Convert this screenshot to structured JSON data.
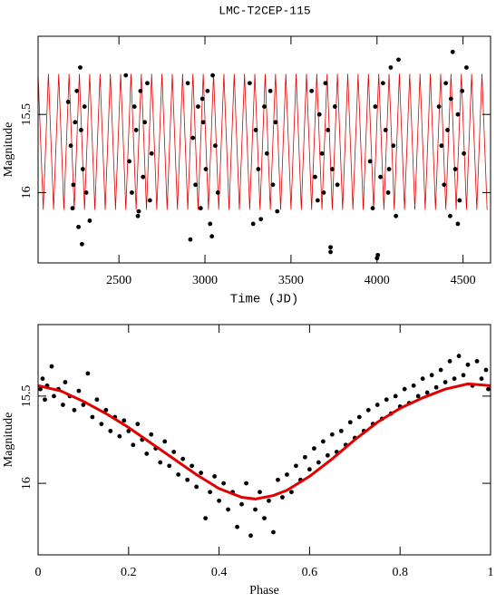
{
  "chart_data": [
    {
      "type": "scatter",
      "title": "LMC-T2CEP-115",
      "x_label": "Time (JD)",
      "y_label": "Magnitude",
      "xlim": [
        2030,
        4660
      ],
      "ylim": [
        15.0,
        16.45
      ],
      "y_inverted": true,
      "xticks": [
        2500,
        3000,
        3500,
        4000,
        4500
      ],
      "yticks": [
        15.5,
        16
      ],
      "series": [
        {
          "type": "line",
          "color": "#e00000",
          "x": [
            2030,
            2060,
            2090,
            2120,
            2150,
            2180,
            2210,
            2240,
            2270,
            2300,
            2330,
            2360,
            2390,
            2420,
            2450,
            2480,
            2510,
            2540,
            2570,
            2600,
            2630,
            2660,
            2690,
            2720,
            2750,
            2780,
            2810,
            2840,
            2870,
            2900,
            2930,
            2960,
            2990,
            3020,
            3050,
            3080,
            3110,
            3140,
            3170,
            3200,
            3230,
            3260,
            3290,
            3320,
            3350,
            3380,
            3410,
            3440,
            3470,
            3500,
            3530,
            3560,
            3590,
            3620,
            3650,
            3680,
            3710,
            3740,
            3770,
            3800,
            3830,
            3860,
            3890,
            3920,
            3950,
            3980,
            4010,
            4040,
            4070,
            4100,
            4130,
            4160,
            4190,
            4220,
            4250,
            4280,
            4310,
            4340,
            4370,
            4400,
            4430,
            4460,
            4490,
            4520,
            4550,
            4580,
            4610,
            4640
          ],
          "values": [
            15.24,
            16.11,
            15.24,
            16.11,
            15.24,
            16.11,
            15.24,
            16.11,
            15.24,
            16.11,
            15.24,
            16.11,
            15.24,
            16.11,
            15.24,
            16.11,
            15.24,
            16.11,
            15.24,
            16.11,
            15.24,
            16.11,
            15.24,
            16.11,
            15.24,
            16.11,
            15.24,
            16.11,
            15.24,
            16.11,
            15.24,
            16.11,
            15.24,
            16.11,
            15.24,
            16.11,
            15.24,
            16.11,
            15.24,
            16.11,
            15.24,
            16.11,
            15.24,
            16.11,
            15.24,
            16.11,
            15.24,
            16.11,
            15.24,
            16.11,
            15.24,
            16.11,
            15.24,
            16.11,
            15.24,
            16.11,
            15.24,
            16.11,
            15.24,
            16.11,
            15.24,
            16.11,
            15.24,
            16.11,
            15.24,
            16.11,
            15.24,
            16.11,
            15.24,
            16.11,
            15.24,
            16.11,
            15.24,
            16.11,
            15.24,
            16.11,
            15.24,
            16.11,
            15.24,
            16.11,
            15.24,
            16.11,
            15.24,
            16.11,
            15.24,
            16.11,
            15.24,
            16.11
          ]
        },
        {
          "type": "scatter",
          "color": "#000000",
          "x": [
            2205,
            2220,
            2235,
            2245,
            2255,
            2265,
            2275,
            2280,
            2290,
            2300,
            2310,
            2330,
            2230,
            2285,
            2540,
            2560,
            2575,
            2590,
            2600,
            2615,
            2625,
            2640,
            2650,
            2665,
            2680,
            2690,
            2610,
            2900,
            2915,
            2930,
            2945,
            2960,
            2975,
            2990,
            3005,
            3015,
            3030,
            3045,
            3060,
            3075,
            3040,
            2985,
            3260,
            3280,
            3295,
            3310,
            3325,
            3345,
            3360,
            3380,
            3395,
            3410,
            3420,
            3620,
            3640,
            3655,
            3665,
            3680,
            3700,
            3715,
            3730,
            3740,
            3755,
            3770,
            3730,
            3690,
            3960,
            3975,
            3990,
            4000,
            4005,
            4020,
            4035,
            4050,
            4065,
            4080,
            4095,
            4110,
            4125,
            4070,
            4360,
            4375,
            4390,
            4400,
            4410,
            4425,
            4440,
            4455,
            4470,
            4480,
            4495,
            4505,
            4520,
            4470,
            4430
          ],
          "values": [
            15.42,
            15.7,
            15.95,
            15.55,
            15.35,
            16.22,
            15.2,
            15.6,
            15.85,
            15.45,
            16.0,
            16.18,
            16.1,
            16.33,
            15.25,
            15.8,
            16.0,
            15.45,
            15.6,
            16.12,
            15.35,
            15.9,
            15.55,
            15.3,
            16.05,
            15.75,
            16.15,
            15.3,
            16.3,
            15.65,
            15.95,
            15.45,
            16.1,
            15.55,
            15.85,
            15.35,
            16.2,
            15.25,
            15.7,
            16.0,
            16.28,
            15.4,
            15.3,
            16.2,
            15.6,
            15.85,
            16.17,
            15.45,
            15.75,
            15.35,
            15.95,
            15.55,
            16.12,
            15.35,
            15.9,
            16.05,
            15.5,
            15.75,
            15.3,
            15.6,
            16.35,
            15.85,
            15.45,
            15.95,
            16.38,
            16.0,
            15.8,
            16.1,
            15.45,
            16.42,
            16.4,
            15.9,
            15.3,
            15.6,
            16.0,
            15.2,
            15.7,
            16.15,
            15.15,
            15.85,
            15.45,
            15.7,
            15.95,
            15.3,
            15.6,
            16.15,
            15.1,
            15.85,
            15.5,
            16.05,
            15.35,
            15.75,
            15.2,
            16.2,
            15.4
          ]
        }
      ]
    },
    {
      "type": "scatter",
      "x_label": "Phase",
      "y_label": "Magnitude",
      "xlim": [
        0,
        1
      ],
      "ylim": [
        15.09,
        16.41
      ],
      "y_inverted": true,
      "xticks": [
        0,
        0.2,
        0.4,
        0.6,
        0.8,
        1
      ],
      "yticks": [
        15.5,
        16
      ],
      "series": [
        {
          "type": "scatter",
          "color": "#000000",
          "x": [
            0.005,
            0.01,
            0.015,
            0.02,
            0.03,
            0.035,
            0.045,
            0.055,
            0.06,
            0.07,
            0.08,
            0.09,
            0.1,
            0.11,
            0.12,
            0.13,
            0.14,
            0.15,
            0.16,
            0.17,
            0.18,
            0.19,
            0.2,
            0.21,
            0.22,
            0.23,
            0.24,
            0.25,
            0.26,
            0.27,
            0.28,
            0.29,
            0.3,
            0.31,
            0.32,
            0.33,
            0.34,
            0.35,
            0.36,
            0.37,
            0.38,
            0.39,
            0.4,
            0.41,
            0.42,
            0.43,
            0.44,
            0.45,
            0.46,
            0.47,
            0.48,
            0.49,
            0.5,
            0.51,
            0.52,
            0.53,
            0.54,
            0.55,
            0.56,
            0.57,
            0.58,
            0.59,
            0.6,
            0.61,
            0.62,
            0.63,
            0.64,
            0.65,
            0.66,
            0.67,
            0.68,
            0.69,
            0.7,
            0.71,
            0.72,
            0.73,
            0.74,
            0.75,
            0.76,
            0.77,
            0.78,
            0.79,
            0.8,
            0.81,
            0.82,
            0.83,
            0.84,
            0.85,
            0.86,
            0.87,
            0.88,
            0.89,
            0.9,
            0.91,
            0.92,
            0.93,
            0.94,
            0.95,
            0.96,
            0.97,
            0.98,
            0.99,
            0.995
          ],
          "values": [
            15.46,
            15.4,
            15.52,
            15.44,
            15.33,
            15.5,
            15.46,
            15.55,
            15.42,
            15.5,
            15.58,
            15.47,
            15.55,
            15.37,
            15.62,
            15.52,
            15.66,
            15.58,
            15.7,
            15.62,
            15.73,
            15.64,
            15.7,
            15.78,
            15.66,
            15.75,
            15.83,
            15.72,
            15.8,
            15.88,
            15.76,
            15.9,
            15.82,
            15.95,
            15.86,
            15.98,
            15.9,
            16.02,
            15.94,
            16.2,
            16.05,
            15.96,
            16.1,
            16.0,
            16.15,
            16.05,
            16.25,
            16.12,
            16.0,
            16.3,
            16.15,
            16.05,
            16.2,
            16.1,
            16.28,
            15.98,
            16.08,
            15.95,
            16.05,
            15.9,
            15.98,
            15.85,
            15.92,
            15.8,
            15.88,
            15.76,
            15.84,
            15.72,
            15.82,
            15.7,
            15.78,
            15.65,
            15.74,
            15.62,
            15.7,
            15.58,
            15.66,
            15.55,
            15.63,
            15.52,
            15.6,
            15.5,
            15.56,
            15.46,
            15.54,
            15.44,
            15.5,
            15.4,
            15.48,
            15.38,
            15.45,
            15.35,
            15.42,
            15.3,
            15.4,
            15.27,
            15.38,
            15.32,
            15.44,
            15.3,
            15.4,
            15.35,
            15.46
          ]
        },
        {
          "type": "line",
          "color": "#e00000",
          "x": [
            0,
            0.05,
            0.1,
            0.15,
            0.2,
            0.25,
            0.3,
            0.35,
            0.4,
            0.45,
            0.48,
            0.52,
            0.55,
            0.6,
            0.65,
            0.7,
            0.75,
            0.8,
            0.85,
            0.9,
            0.95,
            1.0
          ],
          "values": [
            15.44,
            15.47,
            15.53,
            15.6,
            15.68,
            15.77,
            15.86,
            15.95,
            16.03,
            16.08,
            16.09,
            16.07,
            16.04,
            15.96,
            15.86,
            15.75,
            15.65,
            15.57,
            15.51,
            15.46,
            15.43,
            15.44
          ]
        }
      ]
    }
  ]
}
